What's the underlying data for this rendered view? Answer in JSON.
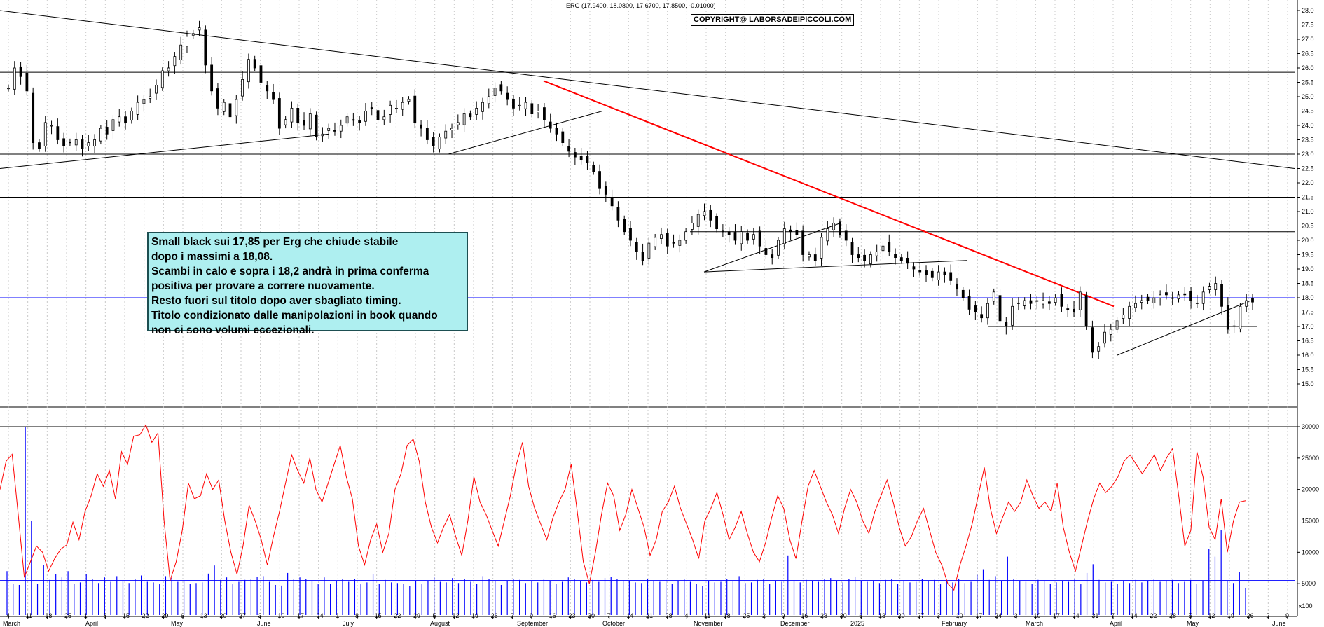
{
  "header": {
    "ticker_line": "ERG (17.9400, 18.0800, 17.6700, 17.8500, -0.01000)",
    "copyright": "COPYRIGHT@ LABORSADEIPICCOLI.COM"
  },
  "comment": {
    "lines": [
      "Small black sui 17,85 per Erg che chiude stabile",
      "dopo i massimi a 18,08.",
      "Scambi in calo e sopra i 18,2 andrà in prima conferma",
      "positiva per provare a correre nuovamente.",
      "Resto fuori sul titolo dopo aver sbagliato timing.",
      "Titolo condizionato dalle manipolazioni in book quando",
      "non ci sono volumi eccezionali."
    ]
  },
  "colors": {
    "trendline_red": "#ff0000",
    "volume_blue": "#0000ff",
    "oscillator_red": "#ff0000",
    "candle": "#000000"
  },
  "chart_data": [
    {
      "type": "candlestick",
      "yaxis_ticks": [
        "15.0",
        "15.5",
        "16.0",
        "16.5",
        "17.0",
        "17.5",
        "18.0",
        "18.5",
        "19.0",
        "19.5",
        "20.0",
        "20.5",
        "21.0",
        "21.5",
        "22.0",
        "22.5",
        "23.0",
        "23.5",
        "24.0",
        "24.5",
        "25.0",
        "25.5",
        "26.0",
        "26.5",
        "27.0",
        "27.5",
        "28.0"
      ],
      "ylim": [
        15.0,
        28.0
      ],
      "xaxis_day_ticks": [
        "4",
        "11",
        "18",
        "25",
        "1",
        "8",
        "15",
        "22",
        "29",
        "6",
        "13",
        "20",
        "27",
        "3",
        "10",
        "17",
        "24",
        "1",
        "8",
        "15",
        "22",
        "29",
        "5",
        "12",
        "19",
        "26",
        "2",
        "9",
        "16",
        "23",
        "30",
        "7",
        "14",
        "21",
        "28",
        "4",
        "11",
        "18",
        "25",
        "2",
        "9",
        "16",
        "23",
        "30",
        "6",
        "13",
        "20",
        "27",
        "3",
        "10",
        "17",
        "24",
        "3",
        "10",
        "17",
        "24",
        "31",
        "7",
        "14",
        "22",
        "28",
        "5",
        "12",
        "19",
        "26",
        "2",
        "9"
      ],
      "xaxis_month_ticks": [
        "March",
        "April",
        "May",
        "June",
        "July",
        "August",
        "September",
        "October",
        "November",
        "December",
        "2025",
        "February",
        "March",
        "April",
        "May",
        "June"
      ],
      "last": {
        "open": 17.94,
        "high": 18.08,
        "low": 17.67,
        "close": 17.85,
        "change": -0.01
      },
      "horizontal_levels": [
        25.85,
        23.0,
        21.5,
        20.3,
        18.0,
        17.0
      ],
      "closes": [
        25.3,
        26.0,
        25.7,
        25.2,
        23.4,
        23.2,
        24.1,
        24.0,
        23.5,
        23.3,
        23.4,
        23.5,
        23.2,
        23.4,
        23.5,
        23.9,
        23.7,
        24.2,
        24.3,
        24.1,
        24.5,
        24.8,
        24.9,
        25.0,
        25.4,
        25.9,
        26.0,
        26.4,
        26.8,
        27.1,
        27.2,
        27.4,
        26.1,
        25.2,
        24.6,
        24.8,
        24.3,
        24.9,
        25.6,
        26.3,
        26.0,
        25.5,
        25.2,
        24.9,
        23.9,
        24.2,
        24.6,
        24.1,
        24.0,
        24.4,
        23.6,
        23.7,
        23.9,
        23.8,
        24.0,
        24.3,
        24.2,
        24.1,
        24.5,
        24.6,
        24.2,
        24.3,
        24.7,
        24.6,
        24.8,
        24.9,
        24.1,
        23.9,
        23.5,
        23.3,
        23.6,
        23.8,
        23.9,
        24.1,
        24.4,
        24.3,
        24.6,
        24.8,
        25.0,
        25.3,
        25.2,
        24.9,
        24.6,
        24.7,
        24.8,
        24.4,
        24.5,
        24.2,
        23.9,
        23.7,
        23.4,
        23.1,
        22.9,
        22.8,
        22.7,
        22.4,
        21.8,
        21.6,
        21.2,
        20.7,
        20.3,
        20.0,
        19.6,
        19.3,
        19.9,
        20.1,
        20.2,
        19.8,
        19.9,
        20.0,
        20.3,
        20.6,
        20.9,
        21.0,
        20.7,
        20.4,
        20.3,
        20.2,
        20.0,
        20.3,
        20.0,
        20.2,
        19.8,
        19.5,
        19.4,
        20.0,
        20.4,
        20.3,
        20.2,
        19.5,
        19.5,
        19.3,
        20.1,
        20.4,
        20.6,
        20.2,
        20.0,
        19.5,
        19.4,
        19.3,
        19.5,
        19.6,
        19.8,
        19.6,
        19.4,
        19.3,
        19.2,
        19.0,
        18.9,
        18.8,
        18.7,
        18.9,
        18.8,
        18.6,
        18.3,
        18.0,
        17.6,
        17.5,
        17.3,
        17.8,
        18.2,
        17.2,
        17.0,
        17.7,
        17.8,
        17.9,
        17.8,
        17.9,
        17.9,
        17.8,
        18.0,
        17.7,
        17.6,
        17.5,
        18.2,
        17.0,
        16.1,
        16.3,
        16.8,
        16.9,
        17.2,
        17.4,
        17.7,
        17.8,
        17.9,
        17.9,
        18.0,
        18.1,
        18.1,
        18.0,
        18.1,
        18.1,
        17.9,
        17.8,
        18.2,
        18.4,
        18.5,
        17.7,
        16.9,
        17.0,
        17.7,
        17.9,
        17.85
      ],
      "red_trendline": {
        "from": 25.55,
        "to": 17.7
      },
      "long_trendline": {
        "from": 28.0,
        "to": 22.5
      }
    },
    {
      "type": "bar+line",
      "series": [
        {
          "name": "",
          "kind": "volume"
        },
        {
          "name": "",
          "kind": "oscillator"
        }
      ],
      "yaxis_ticks": [
        "5000",
        "10000",
        "15000",
        "20000",
        "25000",
        "30000"
      ],
      "ylim": [
        0,
        30000
      ],
      "horizontal_levels": [
        5500
      ],
      "x_bottom_labels": [
        "x100"
      ],
      "volume": [
        7000,
        5000,
        4800,
        30000,
        15000,
        5000,
        8000,
        5600,
        6500,
        6000,
        7000,
        5000,
        5200,
        6500,
        5800,
        5100,
        6000,
        5300,
        6200,
        5500,
        5100,
        5700,
        6300,
        5300,
        5200,
        4900,
        6200,
        5900,
        5300,
        5400,
        5000,
        5100,
        5200,
        6600,
        7900,
        5600,
        6000,
        4900,
        5300,
        5600,
        5700,
        6100,
        6200,
        5300,
        4800,
        4700,
        6700,
        5800,
        6000,
        5700,
        5500,
        4900,
        6000,
        5000,
        5400,
        5800,
        5300,
        5700,
        4900,
        5200,
        6500,
        5000,
        5600,
        5200,
        5100,
        5000,
        4600,
        5400,
        4900,
        5400,
        6100,
        5300,
        5200,
        5900,
        5100,
        5800,
        5300,
        5000,
        6200,
        5700,
        5500,
        4800,
        5400,
        5800,
        5600,
        5100,
        5500,
        5200,
        5700,
        5400,
        5000,
        5300,
        6000,
        5800,
        5500,
        5200,
        5600,
        5300,
        5900,
        6100,
        5700,
        5400,
        5500,
        5200,
        5100,
        5700,
        5400,
        5300,
        5600,
        5000,
        5500,
        5800,
        5300,
        5000,
        4600,
        5500,
        5200,
        5300,
        5700,
        5400,
        6200,
        5100,
        5200,
        5600,
        5800,
        5000,
        5500,
        5300,
        9500,
        5400,
        5200,
        5600,
        5400,
        5300,
        5700,
        5900,
        5500,
        5200,
        5800,
        6100,
        5500,
        5300,
        5400,
        5100,
        5600,
        5700,
        5000,
        5400,
        5200,
        5300,
        5800,
        5500,
        5600,
        4900,
        5400,
        5200,
        5800,
        5100,
        5300,
        6400,
        7300,
        5600,
        6200,
        5400,
        9300,
        5800,
        5500,
        5300,
        5000,
        5600,
        5400,
        5000,
        5200,
        5500,
        5300,
        5800,
        4900,
        6700,
        8100,
        5600,
        5200,
        5300,
        5000,
        5400,
        5100,
        5600,
        5200,
        5400,
        5700,
        5300,
        5500,
        5600,
        5100,
        5300,
        5600,
        5000,
        5400,
        10500,
        9300,
        13600,
        5400,
        5100,
        6800,
        4300
      ],
      "oscillator": [
        20000,
        24500,
        25600,
        16000,
        6000,
        8500,
        11000,
        10000,
        7000,
        9000,
        10500,
        11200,
        14800,
        12000,
        16500,
        19000,
        22500,
        20500,
        23000,
        18500,
        26000,
        24000,
        28500,
        28700,
        30300,
        27500,
        29000,
        15000,
        5500,
        8500,
        13500,
        21000,
        18500,
        19000,
        22500,
        20000,
        21500,
        15000,
        10000,
        6500,
        11000,
        17500,
        15000,
        12000,
        8000,
        12500,
        16500,
        21000,
        25500,
        23000,
        21000,
        25000,
        20000,
        18000,
        21000,
        24000,
        27000,
        22000,
        18500,
        11000,
        8000,
        12000,
        14500,
        10000,
        13000,
        20000,
        22500,
        27000,
        28000,
        24500,
        18000,
        14000,
        11500,
        14000,
        16000,
        12500,
        9500,
        15000,
        22000,
        18000,
        16000,
        13500,
        11000,
        15000,
        19000,
        24000,
        27500,
        20500,
        17000,
        14500,
        12000,
        15500,
        18000,
        20000,
        24000,
        16500,
        8500,
        5000,
        10000,
        16000,
        21000,
        19000,
        13500,
        16000,
        20000,
        17000,
        14000,
        9500,
        12000,
        16500,
        18000,
        20500,
        17000,
        14500,
        12000,
        9000,
        15000,
        17000,
        19500,
        16000,
        12000,
        14000,
        16500,
        13000,
        10000,
        8500,
        11500,
        15500,
        19000,
        17000,
        12000,
        9000,
        15000,
        20500,
        23000,
        20500,
        18000,
        16000,
        13000,
        17000,
        20000,
        18000,
        15000,
        13000,
        16500,
        19000,
        21500,
        18000,
        14000,
        11000,
        12500,
        15000,
        17000,
        13500,
        10000,
        8000,
        5000,
        4000,
        8000,
        11000,
        14500,
        19000,
        23500,
        17000,
        13000,
        15500,
        18000,
        16500,
        18000,
        21500,
        19000,
        17000,
        18000,
        16500,
        21000,
        14000,
        10000,
        7000,
        11000,
        15000,
        18500,
        21000,
        19500,
        20500,
        22000,
        24500,
        25500,
        24000,
        22500,
        24000,
        25500,
        23000,
        25000,
        26500,
        19000,
        11000,
        13500,
        26000,
        22000,
        14000,
        12000,
        18500,
        10000,
        15000,
        18000,
        18200
      ]
    }
  ]
}
